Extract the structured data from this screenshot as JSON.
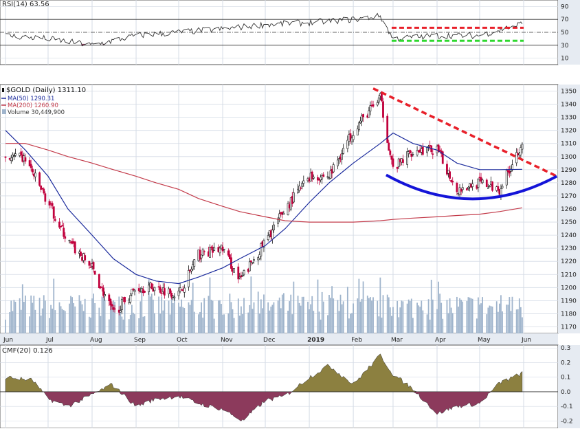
{
  "colors": {
    "background": "#ffffff",
    "plot_bg": "#ffffff",
    "axis_bg": "#e6ebf2",
    "grid": "#d4dbe5",
    "text": "#222222",
    "up_candle": "#111111",
    "down_candle": "#c0003c",
    "volume": "#9fb4cc",
    "ma50": "#1a2a9c",
    "ma200": "#c33b4a",
    "rsi_line": "#333333",
    "rsi_fill": "#8c3a5c",
    "cmf_pos": "#8c8040",
    "cmf_neg": "#8c3a5c",
    "red_dash": "#e8202a",
    "green_dash": "#2ed82e",
    "blue_arc": "#1414d8"
  },
  "rsi_panel": {
    "legend": "RSI(14) 63.56",
    "ticks": [
      "90",
      "70",
      "50",
      "30",
      "10"
    ]
  },
  "price_panel": {
    "legend_title": "$GOLD (Daily) 1311.10",
    "legend_ma50": "MA(50) 1290.31",
    "legend_ma200": "MA(200) 1260.90",
    "legend_volume": "Volume 30,449,900",
    "ticks": [
      "1350",
      "1340",
      "1330",
      "1320",
      "1310",
      "1300",
      "1290",
      "1280",
      "1270",
      "1260",
      "1250",
      "1240",
      "1230",
      "1220",
      "1210",
      "1200",
      "1190",
      "1180",
      "1170"
    ],
    "months": [
      "Jun",
      "Jul",
      "Aug",
      "Sep",
      "Oct",
      "Nov",
      "Dec",
      "2019",
      "Feb",
      "Mar",
      "Apr",
      "May",
      "Jun"
    ]
  },
  "cmf_panel": {
    "legend": "CMF(20) 0.126",
    "ticks": [
      "0.3",
      "0.2",
      "0.1",
      "0.0",
      "-0.1",
      "-0.2"
    ]
  },
  "chart_data": [
    {
      "type": "line",
      "name": "RSI(14)",
      "ylim": [
        0,
        100
      ],
      "reference_lines": [
        30,
        50,
        70
      ],
      "x": [
        "2018-06-01",
        "2018-07-01",
        "2018-08-01",
        "2018-09-01",
        "2018-10-01",
        "2018-11-01",
        "2018-12-01",
        "2019-01-01",
        "2019-02-01",
        "2019-02-20",
        "2019-03-01",
        "2019-04-01",
        "2019-05-01",
        "2019-05-31"
      ],
      "values": [
        45,
        40,
        30,
        45,
        50,
        55,
        62,
        65,
        70,
        75,
        40,
        45,
        45,
        63.56
      ],
      "annotations": [
        {
          "type": "resistance",
          "value": 57,
          "color": "red-dashed"
        },
        {
          "type": "support",
          "value": 37,
          "color": "green-dashed"
        }
      ]
    },
    {
      "type": "candlestick",
      "name": "$GOLD (Daily)",
      "ylim": [
        1165,
        1355
      ],
      "last": 1311.1,
      "x": [
        "2018-06-01",
        "2018-06-15",
        "2018-07-01",
        "2018-07-15",
        "2018-08-01",
        "2018-08-16",
        "2018-09-01",
        "2018-09-15",
        "2018-10-01",
        "2018-10-15",
        "2018-11-01",
        "2018-11-13",
        "2018-12-01",
        "2018-12-15",
        "2019-01-01",
        "2019-01-15",
        "2019-02-01",
        "2019-02-20",
        "2019-03-01",
        "2019-03-15",
        "2019-04-01",
        "2019-04-15",
        "2019-05-01",
        "2019-05-15",
        "2019-05-31"
      ],
      "close": [
        1300,
        1298,
        1265,
        1235,
        1215,
        1180,
        1200,
        1200,
        1195,
        1225,
        1230,
        1205,
        1235,
        1260,
        1285,
        1285,
        1320,
        1345,
        1290,
        1305,
        1305,
        1275,
        1280,
        1275,
        1311.1
      ],
      "series": [
        {
          "name": "MA(50)",
          "last": 1290.31,
          "values": [
            1320,
            1305,
            1285,
            1260,
            1240,
            1222,
            1210,
            1205,
            1203,
            1208,
            1215,
            1222,
            1232,
            1245,
            1265,
            1280,
            1295,
            1310,
            1318,
            1310,
            1305,
            1295,
            1290,
            1290,
            1290.31
          ]
        },
        {
          "name": "MA(200)",
          "last": 1260.9,
          "values": [
            1310,
            1310,
            1305,
            1300,
            1295,
            1290,
            1285,
            1280,
            1275,
            1268,
            1262,
            1258,
            1254,
            1251,
            1250,
            1250,
            1250,
            1251,
            1252,
            1253,
            1254,
            1255,
            1256,
            1258,
            1260.9
          ]
        }
      ],
      "annotations": [
        {
          "type": "descending-trendline",
          "from": [
            "2019-02-15",
            1352
          ],
          "to": [
            "2019-06-05",
            1285
          ],
          "color": "red-dashed"
        },
        {
          "type": "rounding-bottom",
          "from": [
            "2019-03-01",
            1286
          ],
          "to": [
            "2019-06-05",
            1285
          ],
          "bottom": 1267,
          "color": "blue"
        }
      ]
    },
    {
      "type": "bar",
      "name": "Volume",
      "last": 30449900,
      "note": "volume shown as overlay bars at the bottom of the price panel"
    },
    {
      "type": "area",
      "name": "CMF(20)",
      "ylim": [
        -0.25,
        0.32
      ],
      "last": 0.126,
      "x": [
        "2018-06-01",
        "2018-06-20",
        "2018-07-01",
        "2018-07-15",
        "2018-08-01",
        "2018-08-15",
        "2018-09-01",
        "2018-09-15",
        "2018-10-01",
        "2018-10-15",
        "2018-11-01",
        "2018-11-15",
        "2018-12-01",
        "2018-12-15",
        "2019-01-01",
        "2019-01-15",
        "2019-02-01",
        "2019-02-20",
        "2019-03-01",
        "2019-03-15",
        "2019-04-01",
        "2019-04-15",
        "2019-05-01",
        "2019-05-15",
        "2019-05-31"
      ],
      "values": [
        0.1,
        0.08,
        -0.05,
        -0.1,
        -0.02,
        0.05,
        -0.1,
        -0.05,
        -0.03,
        -0.08,
        -0.12,
        -0.2,
        -0.06,
        -0.03,
        0.1,
        0.18,
        0.05,
        0.25,
        0.12,
        0.02,
        -0.15,
        -0.1,
        -0.08,
        0.06,
        0.126
      ]
    }
  ]
}
